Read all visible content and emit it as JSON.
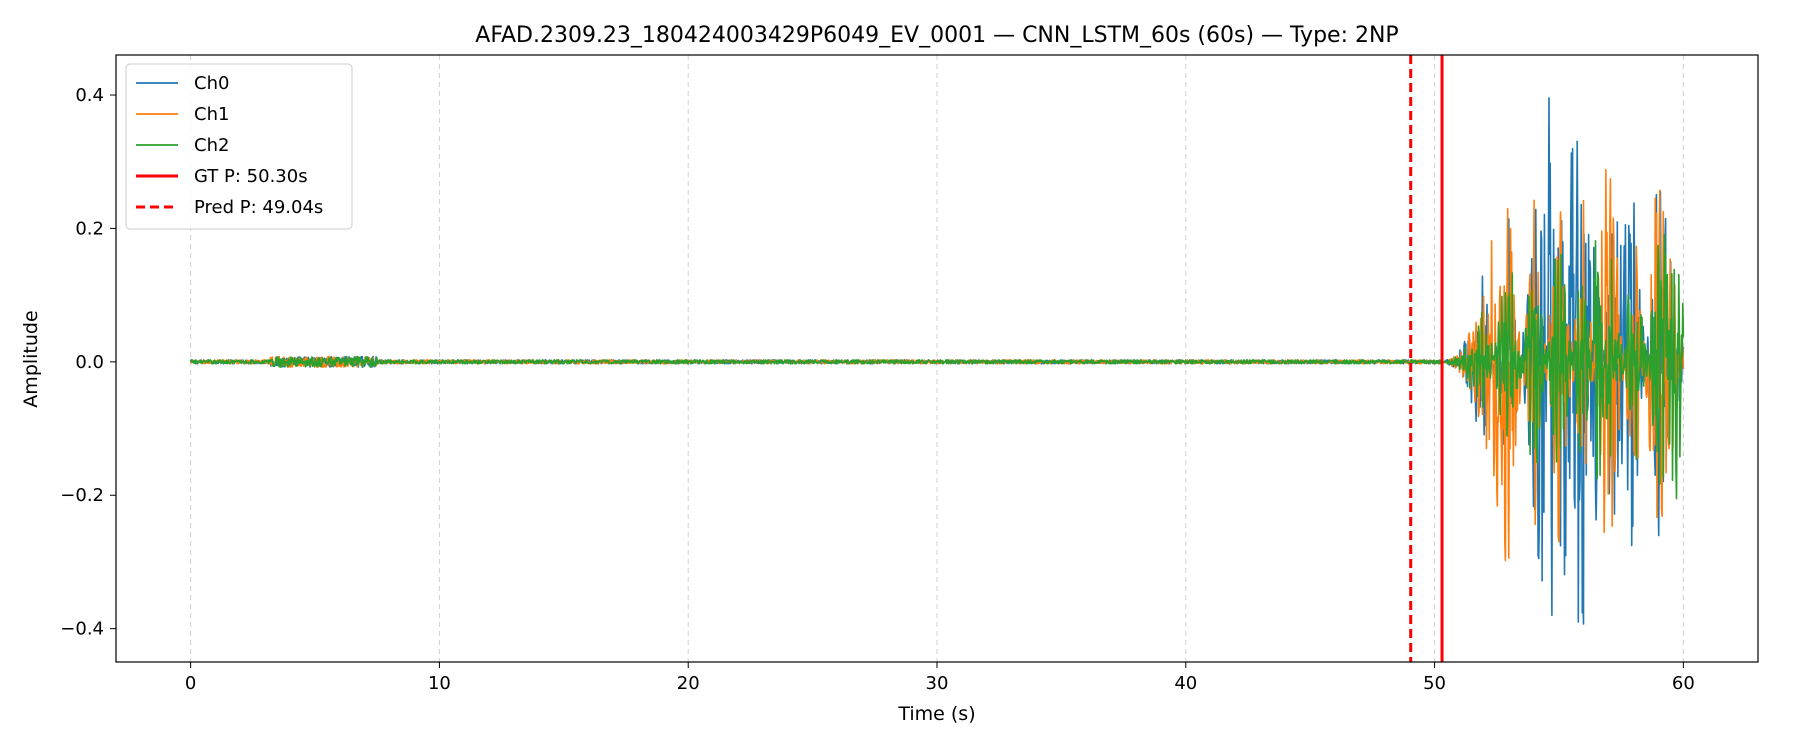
{
  "chart_data": {
    "type": "line",
    "title": "AFAD.2309.23_180424003429P6049_EV_0001 — CNN_LSTM_60s (60s) — Type: 2NP",
    "xlabel": "Time (s)",
    "ylabel": "Amplitude",
    "xlim": [
      -3,
      63
    ],
    "ylim": [
      -0.45,
      0.46
    ],
    "x_ticks": [
      0,
      10,
      20,
      30,
      40,
      50,
      60
    ],
    "y_ticks": [
      -0.4,
      -0.2,
      0.0,
      0.2,
      0.4
    ],
    "x_tick_labels": [
      "0",
      "10",
      "20",
      "30",
      "40",
      "50",
      "60"
    ],
    "y_tick_labels": [
      "−0.4",
      "−0.2",
      "0.0",
      "0.2",
      "0.4"
    ],
    "grid": "vertical dashed",
    "legend_position": "top-left",
    "series": [
      {
        "name": "Ch0",
        "color": "#1f77b4",
        "description": "noise-level signal ~0 until ~50.3s, then strong oscillation up to ~±0.4",
        "points": [
          [
            0,
            0
          ],
          [
            3.6,
            0.01
          ],
          [
            5.5,
            0.012
          ],
          [
            10,
            0
          ],
          [
            30,
            0
          ],
          [
            48,
            0
          ],
          [
            50.3,
            0
          ],
          [
            51,
            0.05
          ],
          [
            52,
            0.15
          ],
          [
            53,
            -0.22
          ],
          [
            54,
            0.25
          ],
          [
            54.7,
            0.42
          ],
          [
            55,
            -0.36
          ],
          [
            56.3,
            -0.41
          ],
          [
            57,
            0.22
          ],
          [
            58,
            0.28
          ],
          [
            59,
            -0.3
          ],
          [
            60,
            0
          ]
        ]
      },
      {
        "name": "Ch1",
        "color": "#ff7f0e",
        "description": "noise-level signal ~0 until ~50.3s, then strong oscillation up to ~±0.37",
        "points": [
          [
            0,
            0
          ],
          [
            3.6,
            -0.02
          ],
          [
            5.5,
            0.01
          ],
          [
            10,
            0
          ],
          [
            30,
            0
          ],
          [
            48,
            0
          ],
          [
            50.3,
            0
          ],
          [
            51,
            0.04
          ],
          [
            52,
            0.12
          ],
          [
            53,
            0.33
          ],
          [
            54,
            -0.27
          ],
          [
            55,
            0.3
          ],
          [
            56,
            -0.25
          ],
          [
            57,
            0.37
          ],
          [
            58,
            -0.25
          ],
          [
            59,
            0.34
          ],
          [
            60,
            0
          ]
        ]
      },
      {
        "name": "Ch2",
        "color": "#2ca02c",
        "description": "noise-level signal ~0 until ~50.3s, then strong oscillation up to ~±0.29",
        "points": [
          [
            0,
            0
          ],
          [
            3.6,
            0.01
          ],
          [
            5.5,
            -0.015
          ],
          [
            10,
            0
          ],
          [
            30,
            0
          ],
          [
            48,
            0
          ],
          [
            50.3,
            0
          ],
          [
            51,
            0.04
          ],
          [
            52,
            0.1
          ],
          [
            53,
            -0.18
          ],
          [
            54,
            0.2
          ],
          [
            55,
            -0.22
          ],
          [
            56,
            0.2
          ],
          [
            56.6,
            -0.29
          ],
          [
            57,
            0.2
          ],
          [
            58,
            -0.2
          ],
          [
            59,
            0.18
          ],
          [
            60,
            0.23
          ]
        ]
      }
    ],
    "markers": [
      {
        "name": "GT P: 50.30s",
        "x": 50.3,
        "color": "#ff0000",
        "style": "solid"
      },
      {
        "name": "Pred P: 49.04s",
        "x": 49.04,
        "color": "#ff0000",
        "style": "dashed"
      }
    ]
  }
}
